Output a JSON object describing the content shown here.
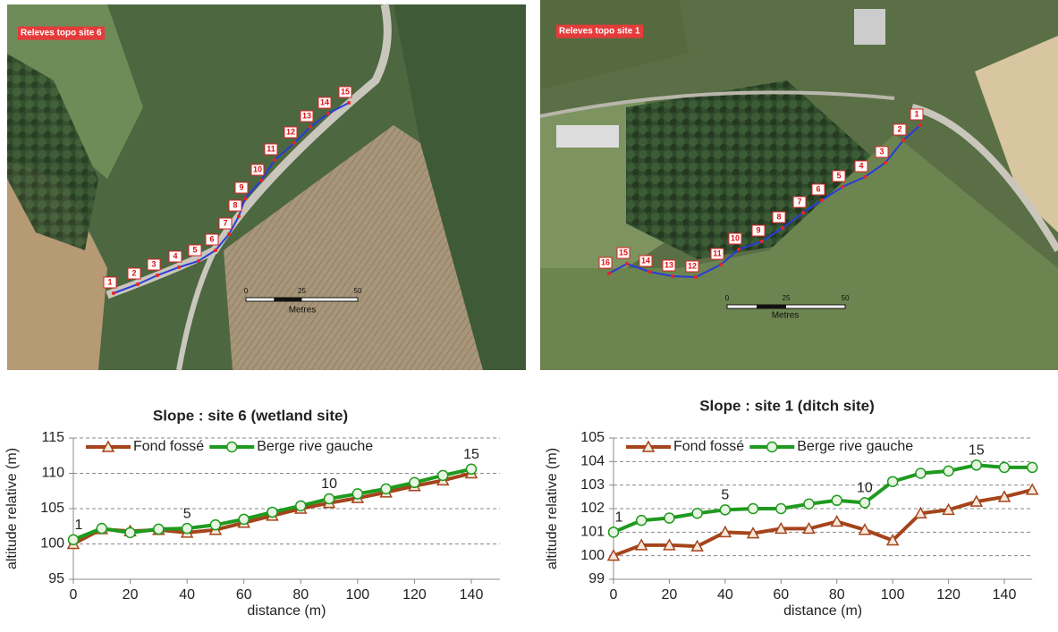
{
  "maps": [
    {
      "title": "Releves topo site 6",
      "points": [
        "1",
        "2",
        "3",
        "4",
        "5",
        "6",
        "7",
        "8",
        "9",
        "10",
        "11",
        "12",
        "13",
        "14",
        "15"
      ],
      "scale": {
        "ticks": [
          "0",
          "25",
          "50"
        ],
        "unit": "Metres"
      }
    },
    {
      "title": "Releves topo site 1",
      "points": [
        "1",
        "2",
        "3",
        "4",
        "5",
        "6",
        "7",
        "8",
        "9",
        "10",
        "11",
        "12",
        "13",
        "14",
        "15",
        "16"
      ],
      "scale": {
        "ticks": [
          "0",
          "25",
          "50"
        ],
        "unit": "Metres"
      }
    }
  ],
  "chart_data": [
    {
      "type": "line",
      "title": "Slope : site 6 (wetland site)",
      "x_label": "distance (m)",
      "y_label": "altitude relative (m)",
      "x": [
        0,
        10,
        20,
        30,
        40,
        50,
        60,
        70,
        80,
        90,
        100,
        110,
        120,
        130,
        140
      ],
      "series": [
        {
          "name": "Fond fossé",
          "color": "#a5441b",
          "marker": "triangle",
          "values": [
            100,
            102.1,
            101.8,
            102,
            101.6,
            102,
            103,
            104,
            105,
            105.8,
            106.5,
            107.3,
            108.2,
            109,
            110
          ]
        },
        {
          "name": "Berge rive gauche",
          "color": "#1f9a1f",
          "marker": "circle",
          "values": [
            100.6,
            102.2,
            101.6,
            102.1,
            102.2,
            102.7,
            103.5,
            104.5,
            105.4,
            106.4,
            107.1,
            107.8,
            108.7,
            109.7,
            110.6
          ]
        }
      ],
      "annotations": [
        {
          "text": "1",
          "x": 0
        },
        {
          "text": "5",
          "x": 40
        },
        {
          "text": "10",
          "x": 90
        },
        {
          "text": "15",
          "x": 140
        }
      ],
      "xlim": [
        0,
        150
      ],
      "xticks": [
        0,
        20,
        40,
        60,
        80,
        100,
        120,
        140
      ],
      "ylim": [
        95,
        115
      ],
      "yticks": [
        95,
        100,
        105,
        110,
        115
      ],
      "grid": true,
      "legend": "top-left"
    },
    {
      "type": "line",
      "title": "Slope : site 1 (ditch site)",
      "x_label": "distance (m)",
      "y_label": "altitude relative (m)",
      "x": [
        0,
        10,
        20,
        30,
        40,
        50,
        60,
        70,
        80,
        90,
        100,
        110,
        120,
        130,
        140,
        150
      ],
      "series": [
        {
          "name": "Fond fossé",
          "color": "#a5441b",
          "marker": "triangle",
          "values": [
            100,
            100.45,
            100.45,
            100.4,
            101,
            100.95,
            101.15,
            101.15,
            101.45,
            101.1,
            100.65,
            101.8,
            101.95,
            102.3,
            102.5,
            102.8
          ]
        },
        {
          "name": "Berge rive gauche",
          "color": "#1f9a1f",
          "marker": "circle",
          "values": [
            101,
            101.5,
            101.6,
            101.8,
            101.95,
            102,
            102,
            102.2,
            102.35,
            102.25,
            103.15,
            103.5,
            103.6,
            103.85,
            103.75,
            103.75
          ]
        }
      ],
      "annotations": [
        {
          "text": "1",
          "x": 0
        },
        {
          "text": "5",
          "x": 40
        },
        {
          "text": "10",
          "x": 90
        },
        {
          "text": "15",
          "x": 130
        }
      ],
      "xlim": [
        0,
        150
      ],
      "xticks": [
        0,
        20,
        40,
        60,
        80,
        100,
        120,
        140
      ],
      "ylim": [
        99,
        105
      ],
      "yticks": [
        99,
        100,
        101,
        102,
        103,
        104,
        105
      ],
      "grid": true,
      "legend": "top-left"
    }
  ]
}
